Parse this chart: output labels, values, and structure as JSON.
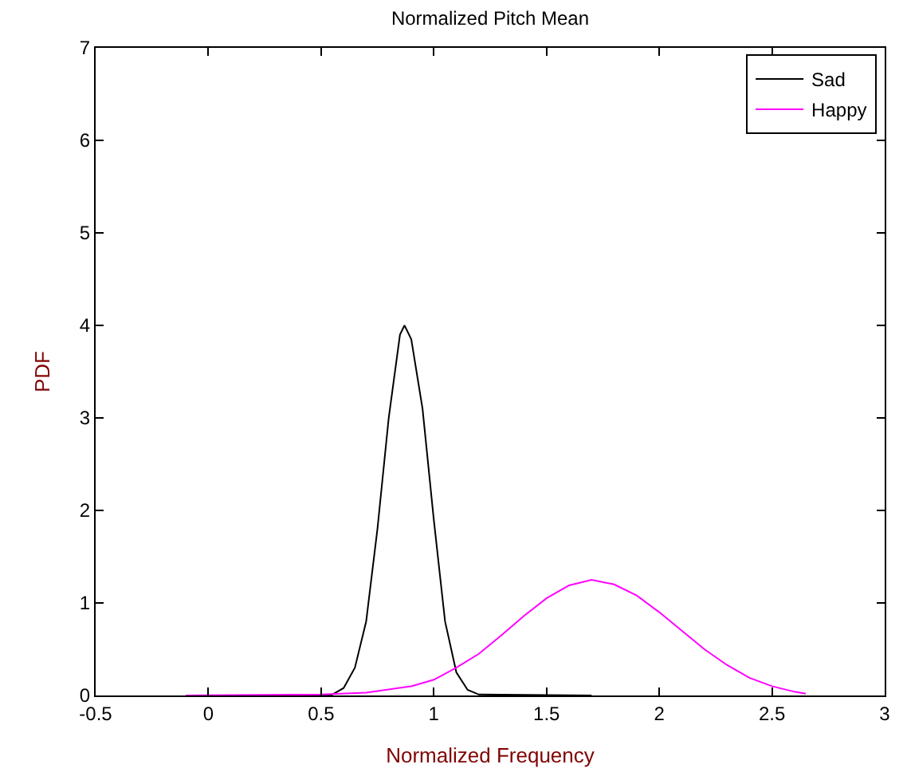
{
  "chart_data": {
    "type": "line",
    "title": "Normalized Pitch Mean",
    "xlabel": "Normalized Frequency",
    "ylabel": "PDF",
    "xlim": [
      -0.5,
      3
    ],
    "xticks": [
      -0.5,
      0,
      0.5,
      1,
      1.5,
      2,
      2.5,
      3
    ],
    "ylim": [
      0,
      7
    ],
    "yticks": [
      0,
      1,
      2,
      3,
      4,
      5,
      6,
      7
    ],
    "legend": "top right",
    "marker": "none",
    "line_style": "solid",
    "series": [
      {
        "name": "Sad",
        "color": "#000000",
        "x": [
          -0.1,
          0.5,
          0.55,
          0.6,
          0.65,
          0.7,
          0.75,
          0.8,
          0.85,
          0.87,
          0.9,
          0.95,
          1.0,
          1.05,
          1.1,
          1.15,
          1.2,
          1.7
        ],
        "values": [
          0,
          0,
          0.01,
          0.08,
          0.3,
          0.8,
          1.8,
          3.0,
          3.9,
          4.0,
          3.85,
          3.1,
          1.9,
          0.8,
          0.25,
          0.06,
          0.01,
          0
        ]
      },
      {
        "name": "Happy",
        "color": "#ff00ff",
        "x": [
          -0.1,
          0.5,
          0.7,
          0.9,
          1.0,
          1.1,
          1.2,
          1.3,
          1.4,
          1.5,
          1.6,
          1.7,
          1.8,
          1.9,
          2.0,
          2.1,
          2.2,
          2.3,
          2.4,
          2.5,
          2.6,
          2.65
        ],
        "values": [
          0,
          0.01,
          0.03,
          0.1,
          0.17,
          0.3,
          0.45,
          0.65,
          0.86,
          1.05,
          1.19,
          1.25,
          1.2,
          1.08,
          0.9,
          0.7,
          0.5,
          0.33,
          0.19,
          0.1,
          0.04,
          0.02
        ]
      }
    ]
  }
}
